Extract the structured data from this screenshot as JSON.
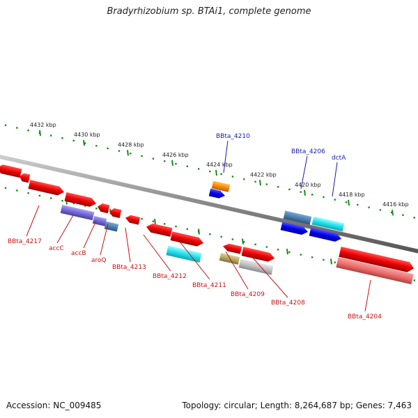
{
  "title": "Bradyrhizobium sp. BTAi1, complete genome",
  "footer": {
    "accession": "Accession: NC_009485",
    "summary": "Topology: circular; Length: 8,264,687 bp; Genes: 7,463"
  },
  "colors": {
    "backbone": "#888888",
    "tick": "#1a8a1a",
    "label_top": "#1a1aa8",
    "label_bottom": "#cc1111"
  },
  "ticks": [
    "4432 kbp",
    "4430 kbp",
    "4428 kbp",
    "4426 kbp",
    "4424 kbp",
    "4422 kbp",
    "4420 kbp",
    "4418 kbp",
    "4416 kbp"
  ],
  "labels_top": [
    "BBta_4210",
    "BBta_4206",
    "dctA"
  ],
  "labels_bottom": [
    "BBta_4217",
    "accC",
    "accB",
    "aroQ",
    "BBta_4213",
    "BBta_4212",
    "BBta_4211",
    "BBta_4209",
    "BBta_4208",
    "BBta_4204"
  ]
}
